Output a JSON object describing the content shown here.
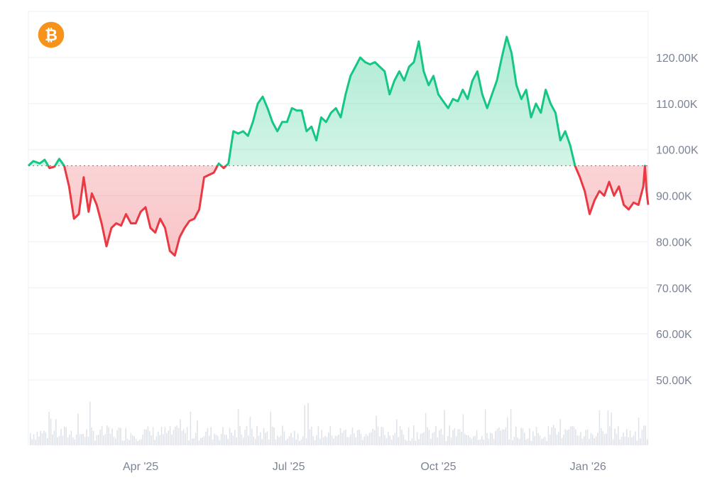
{
  "chart_data": {
    "type": "area",
    "title": "",
    "xlabel": "",
    "ylabel": "",
    "logo_icon": "bitcoin-icon",
    "colors": {
      "up_line": "#16c784",
      "down_line": "#ea3943",
      "baseline": "#ea3943",
      "grid": "#eef0f3",
      "volume": "#dfe3ea",
      "logo": "#f7931a"
    },
    "baseline_value": 96.5,
    "ylim": [
      45,
      130
    ],
    "y_ticks": [
      {
        "value": 50,
        "label": "50.00K"
      },
      {
        "value": 60,
        "label": "60.00K"
      },
      {
        "value": 70,
        "label": "70.00K"
      },
      {
        "value": 80,
        "label": "80.00K"
      },
      {
        "value": 90,
        "label": "90.00K"
      },
      {
        "value": 100,
        "label": "100.00K"
      },
      {
        "value": 110,
        "label": "110.00K"
      },
      {
        "value": 120,
        "label": "120.00K"
      }
    ],
    "x_range": [
      "2025-01-22",
      "2026-02-07"
    ],
    "x_ticks": [
      {
        "date": "2025-04-01",
        "label": "Apr '25"
      },
      {
        "date": "2025-07-01",
        "label": "Jul '25"
      },
      {
        "date": "2025-10-01",
        "label": "Oct '25"
      },
      {
        "date": "2026-01-01",
        "label": "Jan '26"
      }
    ],
    "price_unit": "thousands USD",
    "series": [
      {
        "points": [
          [
            "2025-01-22",
            96.5
          ],
          [
            "2025-01-25",
            97.5
          ],
          [
            "2025-01-29",
            97.0
          ],
          [
            "2025-02-01",
            97.8
          ],
          [
            "2025-02-04",
            96.0
          ],
          [
            "2025-02-07",
            96.3
          ],
          [
            "2025-02-10",
            98.0
          ],
          [
            "2025-02-13",
            96.5
          ],
          [
            "2025-02-16",
            92.0
          ],
          [
            "2025-02-19",
            85.0
          ],
          [
            "2025-02-22",
            86.0
          ],
          [
            "2025-02-25",
            94.0
          ],
          [
            "2025-02-28",
            86.5
          ],
          [
            "2025-03-02",
            90.5
          ],
          [
            "2025-03-05",
            88.0
          ],
          [
            "2025-03-08",
            84.0
          ],
          [
            "2025-03-11",
            79.0
          ],
          [
            "2025-03-14",
            83.0
          ],
          [
            "2025-03-17",
            84.0
          ],
          [
            "2025-03-20",
            83.5
          ],
          [
            "2025-03-23",
            86.0
          ],
          [
            "2025-03-26",
            84.0
          ],
          [
            "2025-03-29",
            84.0
          ],
          [
            "2025-04-01",
            86.5
          ],
          [
            "2025-04-04",
            87.5
          ],
          [
            "2025-04-07",
            83.0
          ],
          [
            "2025-04-10",
            82.0
          ],
          [
            "2025-04-13",
            85.0
          ],
          [
            "2025-04-16",
            83.0
          ],
          [
            "2025-04-19",
            78.0
          ],
          [
            "2025-04-22",
            77.0
          ],
          [
            "2025-04-25",
            81.0
          ],
          [
            "2025-04-28",
            83.0
          ],
          [
            "2025-05-01",
            84.5
          ],
          [
            "2025-05-04",
            85.0
          ],
          [
            "2025-05-07",
            87.0
          ],
          [
            "2025-05-10",
            94.0
          ],
          [
            "2025-05-13",
            94.5
          ],
          [
            "2025-05-16",
            95.0
          ],
          [
            "2025-05-19",
            97.0
          ],
          [
            "2025-05-22",
            96.0
          ],
          [
            "2025-05-25",
            97.0
          ],
          [
            "2025-05-28",
            104.0
          ],
          [
            "2025-05-31",
            103.5
          ],
          [
            "2025-06-03",
            104.0
          ],
          [
            "2025-06-06",
            103.0
          ],
          [
            "2025-06-09",
            106.0
          ],
          [
            "2025-06-12",
            110.0
          ],
          [
            "2025-06-15",
            111.5
          ],
          [
            "2025-06-18",
            109.0
          ],
          [
            "2025-06-21",
            106.0
          ],
          [
            "2025-06-24",
            104.0
          ],
          [
            "2025-06-27",
            106.0
          ],
          [
            "2025-06-30",
            106.0
          ],
          [
            "2025-07-03",
            109.0
          ],
          [
            "2025-07-06",
            108.5
          ],
          [
            "2025-07-09",
            108.5
          ],
          [
            "2025-07-12",
            104.0
          ],
          [
            "2025-07-15",
            105.0
          ],
          [
            "2025-07-18",
            102.0
          ],
          [
            "2025-07-21",
            107.0
          ],
          [
            "2025-07-24",
            106.0
          ],
          [
            "2025-07-27",
            108.0
          ],
          [
            "2025-07-30",
            109.0
          ],
          [
            "2025-08-02",
            107.0
          ],
          [
            "2025-08-05",
            112.0
          ],
          [
            "2025-08-08",
            116.0
          ],
          [
            "2025-08-11",
            118.0
          ],
          [
            "2025-08-14",
            120.0
          ],
          [
            "2025-08-17",
            119.0
          ],
          [
            "2025-08-20",
            118.5
          ],
          [
            "2025-08-23",
            119.0
          ],
          [
            "2025-08-26",
            118.0
          ],
          [
            "2025-08-29",
            117.0
          ],
          [
            "2025-09-01",
            112.0
          ],
          [
            "2025-09-04",
            115.0
          ],
          [
            "2025-09-07",
            117.0
          ],
          [
            "2025-09-10",
            115.0
          ],
          [
            "2025-09-13",
            118.0
          ],
          [
            "2025-09-16",
            119.0
          ],
          [
            "2025-09-19",
            123.5
          ],
          [
            "2025-09-22",
            117.0
          ],
          [
            "2025-09-25",
            114.0
          ],
          [
            "2025-09-28",
            116.0
          ],
          [
            "2025-10-01",
            112.0
          ],
          [
            "2025-10-04",
            110.5
          ],
          [
            "2025-10-07",
            109.0
          ],
          [
            "2025-10-10",
            111.0
          ],
          [
            "2025-10-13",
            110.5
          ],
          [
            "2025-10-16",
            113.0
          ],
          [
            "2025-10-19",
            111.0
          ],
          [
            "2025-10-22",
            115.0
          ],
          [
            "2025-10-25",
            117.0
          ],
          [
            "2025-10-28",
            112.0
          ],
          [
            "2025-10-31",
            109.0
          ],
          [
            "2025-11-03",
            112.0
          ],
          [
            "2025-11-06",
            115.0
          ],
          [
            "2025-11-09",
            120.0
          ],
          [
            "2025-11-12",
            124.5
          ],
          [
            "2025-11-15",
            121.0
          ],
          [
            "2025-11-18",
            114.0
          ],
          [
            "2025-11-21",
            111.0
          ],
          [
            "2025-11-24",
            113.0
          ],
          [
            "2025-11-27",
            107.0
          ],
          [
            "2025-11-30",
            110.0
          ],
          [
            "2025-12-03",
            108.0
          ],
          [
            "2025-12-06",
            113.0
          ],
          [
            "2025-12-09",
            110.0
          ],
          [
            "2025-12-12",
            108.0
          ],
          [
            "2025-12-15",
            102.0
          ],
          [
            "2025-12-18",
            104.0
          ],
          [
            "2025-12-21",
            101.0
          ],
          [
            "2025-12-24",
            96.5
          ],
          [
            "2025-12-27",
            94.0
          ],
          [
            "2025-12-30",
            91.0
          ],
          [
            "2026-01-02",
            86.0
          ],
          [
            "2026-01-05",
            89.0
          ],
          [
            "2026-01-08",
            91.0
          ],
          [
            "2026-01-11",
            90.0
          ],
          [
            "2026-01-14",
            93.0
          ],
          [
            "2026-01-17",
            90.0
          ],
          [
            "2026-01-20",
            92.0
          ],
          [
            "2026-01-23",
            88.0
          ],
          [
            "2026-01-26",
            87.0
          ],
          [
            "2026-01-29",
            88.5
          ],
          [
            "2026-02-01",
            88.0
          ],
          [
            "2026-02-04",
            92.0
          ],
          [
            "2026-02-05",
            96.5
          ],
          [
            "2026-02-06",
            91.0
          ],
          [
            "2026-02-07",
            88.0
          ]
        ]
      }
    ]
  }
}
